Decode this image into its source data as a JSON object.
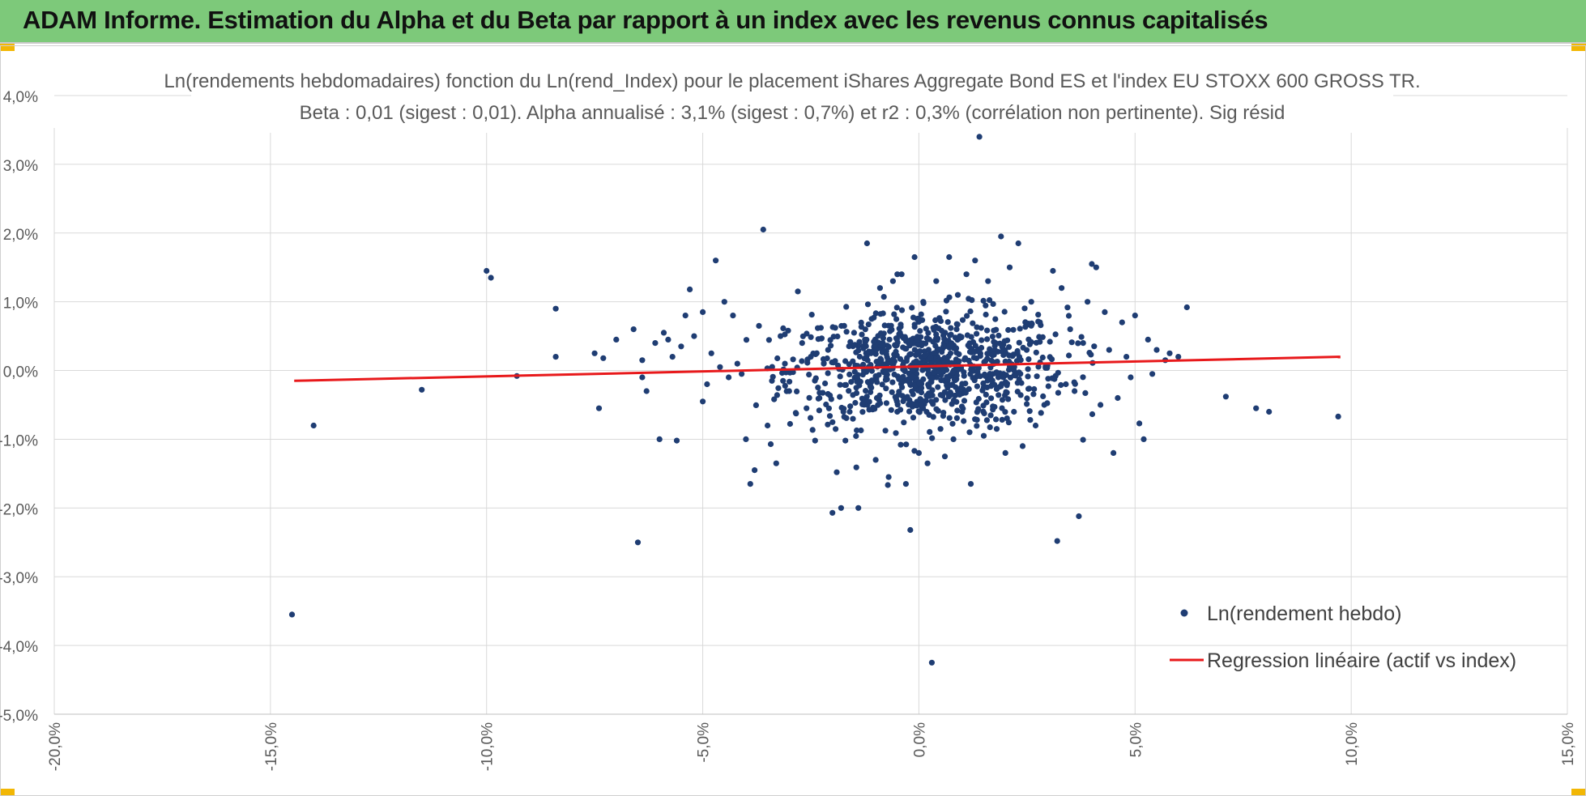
{
  "header": {
    "title": "ADAM Informe. Estimation du Alpha et du Beta par rapport à un index avec les revenus connus capitalisés"
  },
  "colors": {
    "banner": "#7dc97a",
    "points": "#1f3d73",
    "regression": "#e8191b",
    "grid": "#d9d9d9",
    "corner": "#f2b705"
  },
  "chart_data": {
    "type": "scatter",
    "title": "Ln(rendements hebdomadaires) fonction du Ln(rend_Index) pour le placement iShares Aggregate Bond ES et l'index EU STOXX 600 GROSS TR.",
    "subtitle": "Beta : 0,01 (sigest : 0,01).  Alpha annualisé : 3,1% (sigest : 0,7%) et r2 : 0,3% (corrélation non pertinente). Sig résid",
    "xlim": [
      -0.2,
      0.15
    ],
    "ylim": [
      -0.05,
      0.04
    ],
    "xticks": [
      "-20,0%",
      "-15,0%",
      "-10,0%",
      "-5,0%",
      "0,0%",
      "5,0%",
      "10,0%",
      "15,0%"
    ],
    "yticks": [
      "4,0%",
      "3,0%",
      "2,0%",
      "1,0%",
      "0,0%",
      "-1,0%",
      "-2,0%",
      "-3,0%",
      "-4,0%",
      "-5,0%"
    ],
    "grid": true,
    "legend_position": "bottom-right",
    "series": [
      {
        "name": "Ln(rendement hebdo)",
        "kind": "points",
        "cluster_note_center": [
          0.0,
          0.0
        ],
        "points": [
          [
            -0.145,
            -0.0355
          ],
          [
            -0.14,
            -0.008
          ],
          [
            -0.115,
            -0.0028
          ],
          [
            -0.1,
            0.0145
          ],
          [
            -0.099,
            0.0135
          ],
          [
            -0.093,
            -0.0008
          ],
          [
            -0.084,
            0.009
          ],
          [
            -0.084,
            0.002
          ],
          [
            -0.075,
            0.0025
          ],
          [
            -0.074,
            -0.0055
          ],
          [
            -0.073,
            0.0018
          ],
          [
            -0.07,
            0.0045
          ],
          [
            -0.066,
            0.006
          ],
          [
            -0.065,
            -0.025
          ],
          [
            -0.064,
            0.0015
          ],
          [
            -0.064,
            -0.001
          ],
          [
            -0.063,
            -0.003
          ],
          [
            -0.061,
            0.004
          ],
          [
            -0.06,
            -0.01
          ],
          [
            -0.059,
            0.0055
          ],
          [
            -0.058,
            0.0045
          ],
          [
            -0.057,
            0.002
          ],
          [
            -0.056,
            -0.0102
          ],
          [
            -0.055,
            0.0035
          ],
          [
            -0.054,
            0.008
          ],
          [
            -0.053,
            0.0118
          ],
          [
            -0.052,
            0.005
          ],
          [
            -0.05,
            0.0085
          ],
          [
            -0.05,
            -0.0045
          ],
          [
            -0.049,
            -0.002
          ],
          [
            -0.048,
            0.0025
          ],
          [
            -0.047,
            0.016
          ],
          [
            -0.046,
            0.0005
          ],
          [
            -0.045,
            0.01
          ],
          [
            -0.044,
            -0.001
          ],
          [
            -0.043,
            0.008
          ],
          [
            -0.042,
            0.001
          ],
          [
            -0.041,
            -0.0005
          ],
          [
            -0.04,
            -0.01
          ],
          [
            -0.039,
            -0.0165
          ],
          [
            -0.038,
            -0.0145
          ],
          [
            -0.037,
            0.0065
          ],
          [
            -0.036,
            0.0205
          ],
          [
            -0.035,
            -0.008
          ],
          [
            -0.034,
            -0.0015
          ],
          [
            -0.033,
            -0.0135
          ],
          [
            -0.032,
            0.005
          ],
          [
            -0.031,
            0.001
          ],
          [
            -0.03,
            -0.003
          ],
          [
            -0.028,
            0.0115
          ],
          [
            -0.027,
            0.004
          ],
          [
            -0.026,
            -0.0055
          ],
          [
            -0.025,
            0.002
          ],
          [
            -0.024,
            -0.0102
          ],
          [
            -0.023,
            -0.004
          ],
          [
            -0.022,
            0.001
          ],
          [
            -0.021,
            0.003
          ],
          [
            -0.02,
            -0.0207
          ],
          [
            -0.019,
            -0.0148
          ],
          [
            -0.018,
            -0.02
          ],
          [
            -0.017,
            -0.0102
          ],
          [
            -0.016,
            -0.006
          ],
          [
            -0.015,
            0.0055
          ],
          [
            -0.014,
            -0.02
          ],
          [
            -0.013,
            0.0005
          ],
          [
            -0.012,
            0.0185
          ],
          [
            -0.011,
            -0.0025
          ],
          [
            -0.01,
            -0.013
          ],
          [
            -0.009,
            0.012
          ],
          [
            -0.008,
            0.0005
          ],
          [
            -0.007,
            -0.0155
          ],
          [
            -0.006,
            0.013
          ],
          [
            -0.005,
            -0.006
          ],
          [
            -0.004,
            0.014
          ],
          [
            -0.003,
            -0.0165
          ],
          [
            -0.002,
            -0.0232
          ],
          [
            -0.001,
            0.0165
          ],
          [
            0.0,
            -0.012
          ],
          [
            0.001,
            0.01
          ],
          [
            0.002,
            -0.0135
          ],
          [
            0.003,
            -0.0425
          ],
          [
            0.004,
            0.013
          ],
          [
            0.005,
            -0.0085
          ],
          [
            0.006,
            -0.0125
          ],
          [
            0.007,
            0.0165
          ],
          [
            0.008,
            -0.01
          ],
          [
            0.009,
            0.011
          ],
          [
            0.01,
            -0.006
          ],
          [
            0.011,
            0.014
          ],
          [
            0.012,
            -0.0165
          ],
          [
            0.013,
            0.016
          ],
          [
            0.014,
            0.034
          ],
          [
            0.015,
            -0.0095
          ],
          [
            0.016,
            0.013
          ],
          [
            0.018,
            -0.0085
          ],
          [
            0.019,
            0.0195
          ],
          [
            0.02,
            -0.012
          ],
          [
            0.021,
            0.015
          ],
          [
            0.022,
            -0.006
          ],
          [
            0.023,
            0.0185
          ],
          [
            0.024,
            -0.011
          ],
          [
            0.026,
            0.01
          ],
          [
            0.027,
            -0.008
          ],
          [
            0.028,
            0.007
          ],
          [
            0.029,
            -0.005
          ],
          [
            0.031,
            0.0145
          ],
          [
            0.032,
            -0.0248
          ],
          [
            0.033,
            0.012
          ],
          [
            0.034,
            -0.002
          ],
          [
            0.035,
            0.006
          ],
          [
            0.036,
            -0.003
          ],
          [
            0.037,
            -0.0212
          ],
          [
            0.038,
            0.004
          ],
          [
            0.039,
            0.01
          ],
          [
            0.04,
            0.0155
          ],
          [
            0.041,
            0.015
          ],
          [
            0.042,
            -0.005
          ],
          [
            0.043,
            0.0085
          ],
          [
            0.044,
            0.003
          ],
          [
            0.045,
            -0.012
          ],
          [
            0.046,
            -0.004
          ],
          [
            0.047,
            0.007
          ],
          [
            0.048,
            0.002
          ],
          [
            0.049,
            -0.001
          ],
          [
            0.05,
            0.008
          ],
          [
            0.051,
            -0.0077
          ],
          [
            0.052,
            -0.01
          ],
          [
            0.053,
            0.0045
          ],
          [
            0.054,
            -0.0005
          ],
          [
            0.055,
            0.003
          ],
          [
            0.057,
            0.0015
          ],
          [
            0.058,
            0.0025
          ],
          [
            0.06,
            0.002
          ],
          [
            0.062,
            0.0092
          ],
          [
            0.071,
            -0.0038
          ],
          [
            0.078,
            -0.0055
          ],
          [
            0.081,
            -0.006
          ],
          [
            0.097,
            -0.0067
          ]
        ]
      },
      {
        "name": "Regression linéaire (actif vs index)",
        "kind": "line",
        "points": [
          [
            -0.1445,
            -0.0015
          ],
          [
            0.0975,
            0.002
          ]
        ]
      }
    ]
  }
}
